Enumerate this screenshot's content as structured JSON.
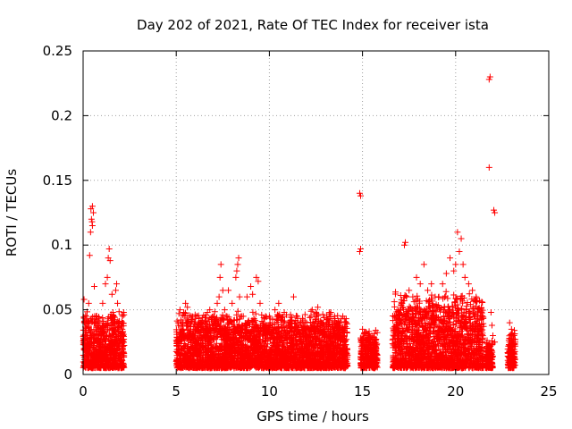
{
  "chart_data": {
    "type": "scatter",
    "title": "Day 202 of 2021, Rate Of TEC Index for receiver ista",
    "xlabel": "GPS time / hours",
    "ylabel": "ROTI / TECUs",
    "xlim": [
      0,
      25
    ],
    "ylim": [
      0,
      0.25
    ],
    "xticks": [
      "0",
      "5",
      "10",
      "15",
      "20",
      "25"
    ],
    "yticks": [
      "0",
      "0.05",
      "0.1",
      "0.15",
      "0.2",
      "0.25"
    ],
    "grid": true,
    "marker": "+",
    "color": "#ff0000",
    "series": [
      {
        "points": [
          [
            0.05,
            0.058
          ],
          [
            0.15,
            0.045
          ],
          [
            0.3,
            0.055
          ],
          [
            0.35,
            0.092
          ],
          [
            0.4,
            0.11
          ],
          [
            0.42,
            0.128
          ],
          [
            0.45,
            0.12
          ],
          [
            0.5,
            0.115
          ],
          [
            0.55,
            0.125
          ],
          [
            0.5,
            0.13
          ],
          [
            0.48,
            0.118
          ],
          [
            0.6,
            0.068
          ],
          [
            0.7,
            0.045
          ],
          [
            0.9,
            0.04
          ],
          [
            1.05,
            0.055
          ],
          [
            1.2,
            0.07
          ],
          [
            1.3,
            0.075
          ],
          [
            1.35,
            0.09
          ],
          [
            1.4,
            0.097
          ],
          [
            1.45,
            0.088
          ],
          [
            1.55,
            0.062
          ],
          [
            1.6,
            0.048
          ],
          [
            1.65,
            0.045
          ],
          [
            1.75,
            0.065
          ],
          [
            1.8,
            0.07
          ],
          [
            1.85,
            0.055
          ],
          [
            1.9,
            0.04
          ],
          [
            2.0,
            0.03
          ],
          [
            2.1,
            0.035
          ],
          [
            5.1,
            0.04
          ],
          [
            5.2,
            0.05
          ],
          [
            5.4,
            0.048
          ],
          [
            5.5,
            0.055
          ],
          [
            5.6,
            0.052
          ],
          [
            5.8,
            0.045
          ],
          [
            6.0,
            0.035
          ],
          [
            6.3,
            0.04
          ],
          [
            6.6,
            0.042
          ],
          [
            6.8,
            0.05
          ],
          [
            7.0,
            0.045
          ],
          [
            7.2,
            0.055
          ],
          [
            7.3,
            0.06
          ],
          [
            7.35,
            0.075
          ],
          [
            7.4,
            0.085
          ],
          [
            7.5,
            0.065
          ],
          [
            7.6,
            0.05
          ],
          [
            7.8,
            0.065
          ],
          [
            8.0,
            0.055
          ],
          [
            8.2,
            0.075
          ],
          [
            8.25,
            0.08
          ],
          [
            8.3,
            0.085
          ],
          [
            8.35,
            0.09
          ],
          [
            8.4,
            0.06
          ],
          [
            8.6,
            0.045
          ],
          [
            8.8,
            0.06
          ],
          [
            9.0,
            0.068
          ],
          [
            9.1,
            0.062
          ],
          [
            9.3,
            0.075
          ],
          [
            9.4,
            0.072
          ],
          [
            9.5,
            0.055
          ],
          [
            9.8,
            0.045
          ],
          [
            10.0,
            0.045
          ],
          [
            10.3,
            0.05
          ],
          [
            10.5,
            0.055
          ],
          [
            10.8,
            0.048
          ],
          [
            11.0,
            0.04
          ],
          [
            11.3,
            0.06
          ],
          [
            11.5,
            0.045
          ],
          [
            11.8,
            0.042
          ],
          [
            12.0,
            0.04
          ],
          [
            12.3,
            0.05
          ],
          [
            12.6,
            0.052
          ],
          [
            12.8,
            0.04
          ],
          [
            13.0,
            0.035
          ],
          [
            13.3,
            0.048
          ],
          [
            13.5,
            0.045
          ],
          [
            13.7,
            0.038
          ],
          [
            14.0,
            0.032
          ],
          [
            14.85,
            0.14
          ],
          [
            14.9,
            0.138
          ],
          [
            14.85,
            0.095
          ],
          [
            14.9,
            0.097
          ],
          [
            15.0,
            0.035
          ],
          [
            15.2,
            0.03
          ],
          [
            15.4,
            0.025
          ],
          [
            15.6,
            0.02
          ],
          [
            16.7,
            0.03
          ],
          [
            16.9,
            0.05
          ],
          [
            17.1,
            0.055
          ],
          [
            17.25,
            0.1
          ],
          [
            17.3,
            0.102
          ],
          [
            17.5,
            0.065
          ],
          [
            17.7,
            0.06
          ],
          [
            17.9,
            0.075
          ],
          [
            18.1,
            0.07
          ],
          [
            18.3,
            0.085
          ],
          [
            18.5,
            0.065
          ],
          [
            18.7,
            0.07
          ],
          [
            18.9,
            0.06
          ],
          [
            19.1,
            0.06
          ],
          [
            19.3,
            0.07
          ],
          [
            19.5,
            0.078
          ],
          [
            19.7,
            0.09
          ],
          [
            19.9,
            0.08
          ],
          [
            20.0,
            0.085
          ],
          [
            20.1,
            0.11
          ],
          [
            20.2,
            0.095
          ],
          [
            20.3,
            0.105
          ],
          [
            20.4,
            0.085
          ],
          [
            20.5,
            0.075
          ],
          [
            20.7,
            0.07
          ],
          [
            20.9,
            0.065
          ],
          [
            21.1,
            0.06
          ],
          [
            21.3,
            0.05
          ],
          [
            21.8,
            0.228
          ],
          [
            21.85,
            0.23
          ],
          [
            21.8,
            0.16
          ],
          [
            21.9,
            0.048
          ],
          [
            21.95,
            0.038
          ],
          [
            22.05,
            0.127
          ],
          [
            22.1,
            0.125
          ],
          [
            22.0,
            0.03
          ],
          [
            22.1,
            0.025
          ],
          [
            22.9,
            0.04
          ],
          [
            23.0,
            0.035
          ],
          [
            23.1,
            0.03
          ],
          [
            23.2,
            0.025
          ]
        ],
        "bands": [
          [
            0.0,
            2.2,
            0.005,
            0.035
          ],
          [
            5.0,
            14.2,
            0.005,
            0.035
          ],
          [
            14.9,
            15.8,
            0.005,
            0.025
          ],
          [
            16.6,
            21.5,
            0.005,
            0.045
          ],
          [
            21.6,
            22.0,
            0.005,
            0.02
          ],
          [
            22.8,
            23.2,
            0.005,
            0.025
          ]
        ]
      }
    ]
  }
}
